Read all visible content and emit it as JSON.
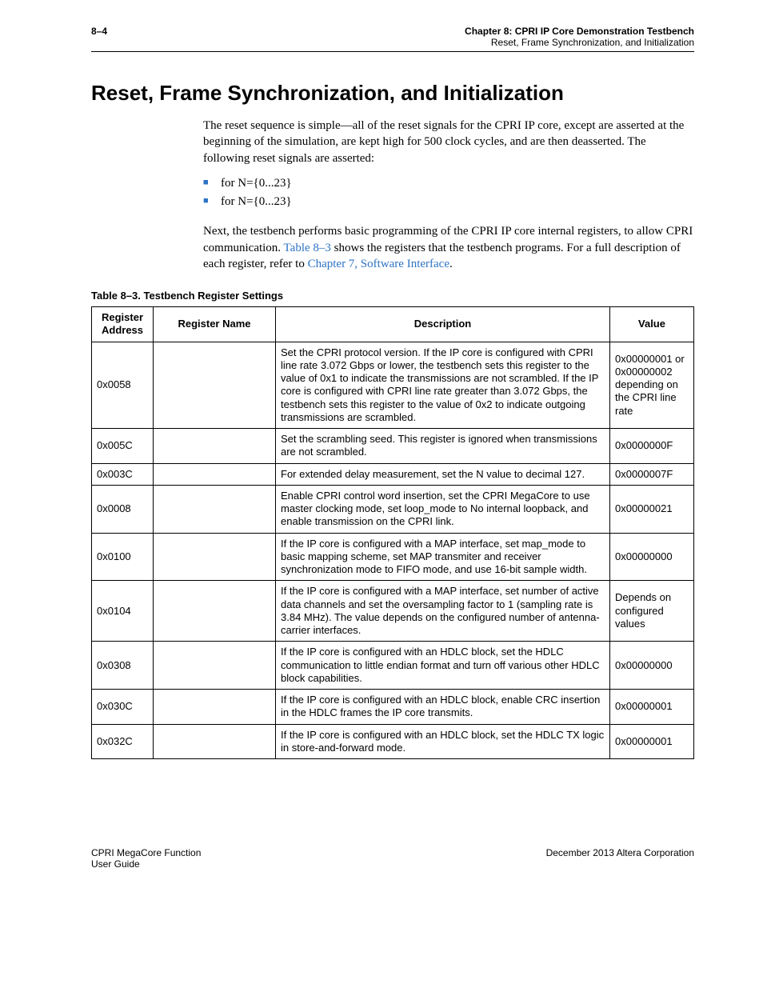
{
  "header": {
    "page_num": "8–4",
    "chapter": "Chapter 8:  CPRI IP Core Demonstration Testbench",
    "subtitle": "Reset, Frame Synchronization, and Initialization"
  },
  "section": {
    "title": "Reset, Frame Synchronization, and Initialization",
    "para1": "The reset sequence is simple—all of the reset signals for the CPRI IP core, except ",
    "para1b": " are asserted at the beginning of the simulation, are kept high for 500 clock cycles, and are then deasserted. The following reset signals are asserted:",
    "bullets": [
      {
        "text": ""
      },
      {
        "text": ""
      },
      {
        "text": ""
      },
      {
        "text": ""
      },
      {
        "text": " for N={0...23}"
      },
      {
        "text": " for N={0...23}"
      }
    ],
    "para2a": "Next, the testbench performs basic programming of the CPRI IP core internal registers, to allow CPRI communication. ",
    "para2link1": "Table 8–3",
    "para2b": " shows the registers that the testbench programs. For a full description of each register, refer to ",
    "para2link2": "Chapter 7, Software Interface",
    "para2c": "."
  },
  "table": {
    "caption": "Table 8–3.  Testbench Register Settings",
    "headers": {
      "addr": "Register Address",
      "name": "Register Name",
      "desc": "Description",
      "value": "Value"
    },
    "rows": [
      {
        "addr": "0x0058",
        "name": "",
        "desc": "Set the CPRI protocol version. If the IP core is configured with CPRI line rate 3.072 Gbps or lower, the testbench sets this register to the value of 0x1 to indicate the transmissions are not scrambled. If the IP core is configured with CPRI line rate greater than 3.072 Gbps, the testbench sets this register to the value of 0x2 to indicate outgoing transmissions are scrambled.",
        "value": "0x00000001 or 0x00000002 depending on the CPRI line rate"
      },
      {
        "addr": "0x005C",
        "name": "",
        "desc": "Set the scrambling seed. This register is ignored when transmissions are not scrambled.",
        "value": "0x0000000F"
      },
      {
        "addr": "0x003C",
        "name": "",
        "desc": "For extended delay measurement, set the N value to decimal 127.",
        "value": "0x0000007F"
      },
      {
        "addr": "0x0008",
        "name": "",
        "desc": "Enable CPRI control word insertion, set the CPRI MegaCore to use master clocking mode, set loop_mode to No internal loopback, and enable transmission on the CPRI link.",
        "value": "0x00000021"
      },
      {
        "addr": "0x0100",
        "name": "",
        "desc": "If the IP core is configured with a MAP interface, set map_mode to basic mapping scheme, set MAP transmiter and receiver synchronization mode to FIFO mode, and use 16-bit sample width.",
        "value": "0x00000000"
      },
      {
        "addr": "0x0104",
        "name": "",
        "desc": "If the IP core is configured with a MAP interface, set number of active data channels and set the oversampling factor to 1 (sampling rate is 3.84 MHz). The value depends on the configured number of antenna-carrier interfaces.",
        "value": "Depends on configured values"
      },
      {
        "addr": "0x0308",
        "name": "",
        "desc": "If the IP core is configured with an HDLC block, set the HDLC communication to little endian format and turn off various other HDLC block capabilities.",
        "value": "0x00000000"
      },
      {
        "addr": "0x030C",
        "name": "",
        "desc": "If the IP core is configured with an HDLC block, enable CRC insertion in the HDLC frames the IP core transmits.",
        "value": "0x00000001"
      },
      {
        "addr": "0x032C",
        "name": "",
        "desc": "If the IP core is configured with an HDLC block, set the HDLC TX logic in store-and-forward mode.",
        "value": "0x00000001"
      }
    ]
  },
  "footer": {
    "left1": "CPRI MegaCore Function",
    "left2": "User Guide",
    "right": "December 2013   Altera Corporation"
  }
}
